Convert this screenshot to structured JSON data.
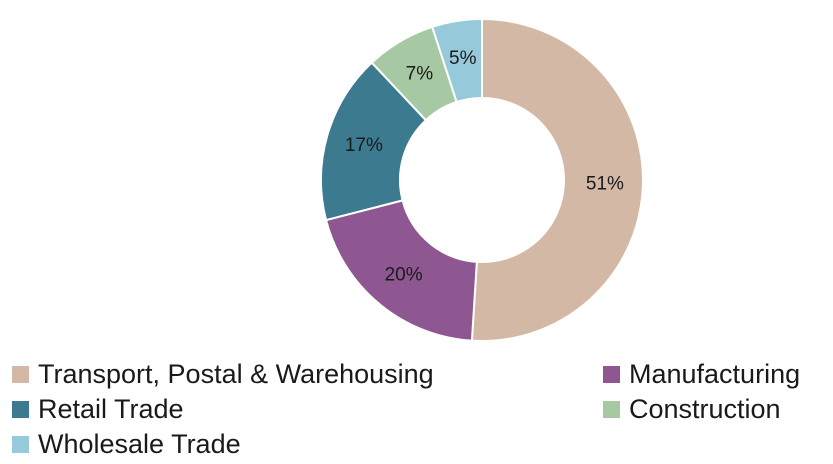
{
  "chart_data": {
    "type": "pie",
    "donut": true,
    "categories": [
      "Transport, Postal & Warehousing",
      "Manufacturing",
      "Retail Trade",
      "Construction",
      "Wholesale Trade"
    ],
    "values": [
      51,
      20,
      17,
      7,
      5
    ],
    "labels": [
      "51%",
      "20%",
      "17%",
      "7%",
      "5%"
    ],
    "colors": [
      "#d4b8a6",
      "#8e5791",
      "#3c7a8f",
      "#a6c8a2",
      "#96c9d9"
    ],
    "start_angle": "12 o'clock",
    "direction": "clockwise",
    "legend_position": "bottom",
    "title": ""
  },
  "legend": {
    "items": [
      {
        "label": "Transport, Postal & Warehousing",
        "color": "#d4b8a6"
      },
      {
        "label": "Manufacturing",
        "color": "#8e5791"
      },
      {
        "label": "Retail Trade",
        "color": "#3c7a8f"
      },
      {
        "label": "Construction",
        "color": "#a6c8a2"
      },
      {
        "label": "Wholesale Trade",
        "color": "#96c9d9"
      }
    ]
  }
}
